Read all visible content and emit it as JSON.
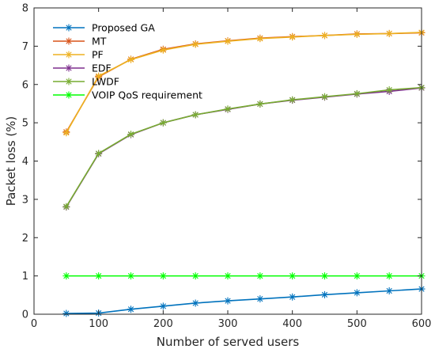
{
  "chart_data": {
    "type": "line",
    "xlabel": "Number of served users",
    "ylabel": "Packet loss (%)",
    "xlim": [
      0,
      600
    ],
    "ylim": [
      0,
      8
    ],
    "xticks": [
      0,
      100,
      200,
      300,
      400,
      500,
      600
    ],
    "yticks": [
      0,
      1,
      2,
      3,
      4,
      5,
      6,
      7,
      8
    ],
    "xtick_labels": [
      "0",
      "100",
      "200",
      "300",
      "400",
      "500",
      "600"
    ],
    "ytick_labels": [
      "0",
      "1",
      "2",
      "3",
      "4",
      "5",
      "6",
      "7",
      "8"
    ],
    "grid": false,
    "legend_position": "top-left",
    "x": [
      50,
      100,
      150,
      200,
      250,
      300,
      350,
      400,
      450,
      500,
      550,
      600
    ],
    "series": [
      {
        "name": "Proposed GA",
        "color": "#0072bd",
        "marker": "asterisk",
        "values": [
          0.02,
          0.03,
          0.13,
          0.21,
          0.29,
          0.35,
          0.4,
          0.45,
          0.51,
          0.56,
          0.61,
          0.66
        ]
      },
      {
        "name": "MT",
        "color": "#d95319",
        "marker": "asterisk",
        "values": [
          4.76,
          6.2,
          6.66,
          6.92,
          7.06,
          7.14,
          7.21,
          7.25,
          7.28,
          7.32,
          7.33,
          7.35
        ]
      },
      {
        "name": "PF",
        "color": "#edb120",
        "marker": "asterisk",
        "values": [
          4.74,
          6.22,
          6.65,
          6.9,
          7.05,
          7.13,
          7.2,
          7.24,
          7.28,
          7.31,
          7.33,
          7.36
        ]
      },
      {
        "name": "EDF",
        "color": "#7e2f8e",
        "marker": "asterisk",
        "values": [
          2.8,
          4.19,
          4.69,
          5.0,
          5.21,
          5.35,
          5.49,
          5.59,
          5.67,
          5.75,
          5.82,
          5.91
        ]
      },
      {
        "name": "LWDF",
        "color": "#77ac30",
        "marker": "asterisk",
        "values": [
          2.81,
          4.2,
          4.7,
          5.0,
          5.21,
          5.36,
          5.49,
          5.6,
          5.68,
          5.76,
          5.86,
          5.92
        ]
      },
      {
        "name": "VOIP QoS requirement",
        "color": "#00ff00",
        "marker": "asterisk",
        "values": [
          1,
          1,
          1,
          1,
          1,
          1,
          1,
          1,
          1,
          1,
          1,
          1
        ]
      }
    ]
  }
}
